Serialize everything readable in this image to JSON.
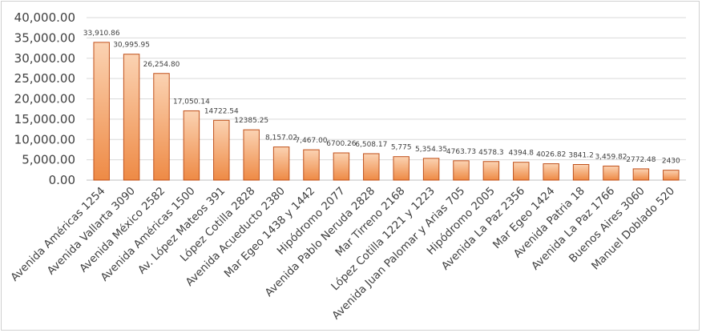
{
  "chart_data": {
    "type": "bar",
    "title": "",
    "xlabel": "",
    "ylabel": "",
    "ylim": [
      0,
      40000
    ],
    "yticks": [
      "0.00",
      "5,000.00",
      "10,000.00",
      "15,000.00",
      "20,000.00",
      "25,000.00",
      "30,000.00",
      "35,000.00",
      "40,000.00"
    ],
    "grid": true,
    "legend": "none",
    "bar_color_light": "#fbd3b3",
    "bar_color_dark": "#ee8a45",
    "bar_edge_color": "#c0501a",
    "categories": [
      "Avenida Américas 1254",
      "Avenida Vallarta 3090",
      "Avenida México 2582",
      "Avenida Américas 1500",
      "Av. López Mateos 391",
      "López Cotilla 2828",
      "Avenida Acueducto 2380",
      "Mar Egeo 1438 y 1442",
      "Hipódromo 2077",
      "Avenida Pablo Neruda 2828",
      "Mar Tirreno 2168",
      "López Cotilla 1221 y 1223",
      "Avenida Juan Palomar y Arias 705",
      "Hipódromo 2005",
      "Avenida La Paz 2356",
      "Mar Egeo 1424",
      "Avenida Patria 18",
      "Avenida La Paz 1766",
      "Buenos Aires 3060",
      "Manuel Doblado 520"
    ],
    "values": [
      33910.86,
      30995.95,
      26254.8,
      17050.14,
      14722.54,
      12385.25,
      8157.02,
      7467.0,
      6700.26,
      6508.17,
      5775,
      5354.35,
      4763.73,
      4578.3,
      4394.8,
      4026.82,
      3841.2,
      3459.82,
      2772.48,
      2430
    ],
    "data_labels": [
      "33,910.86",
      "30,995.95",
      "26,254.80",
      "17,050.14",
      "14722.54",
      "12385.25",
      "8,157.02",
      "7,467.00",
      "6700.26",
      "6,508.17",
      "5,775",
      "5,354.35",
      "4763.73",
      "4578.3",
      "4394.8",
      "4026.82",
      "3841.2",
      "3,459.82",
      "2772.48",
      "2430"
    ]
  }
}
